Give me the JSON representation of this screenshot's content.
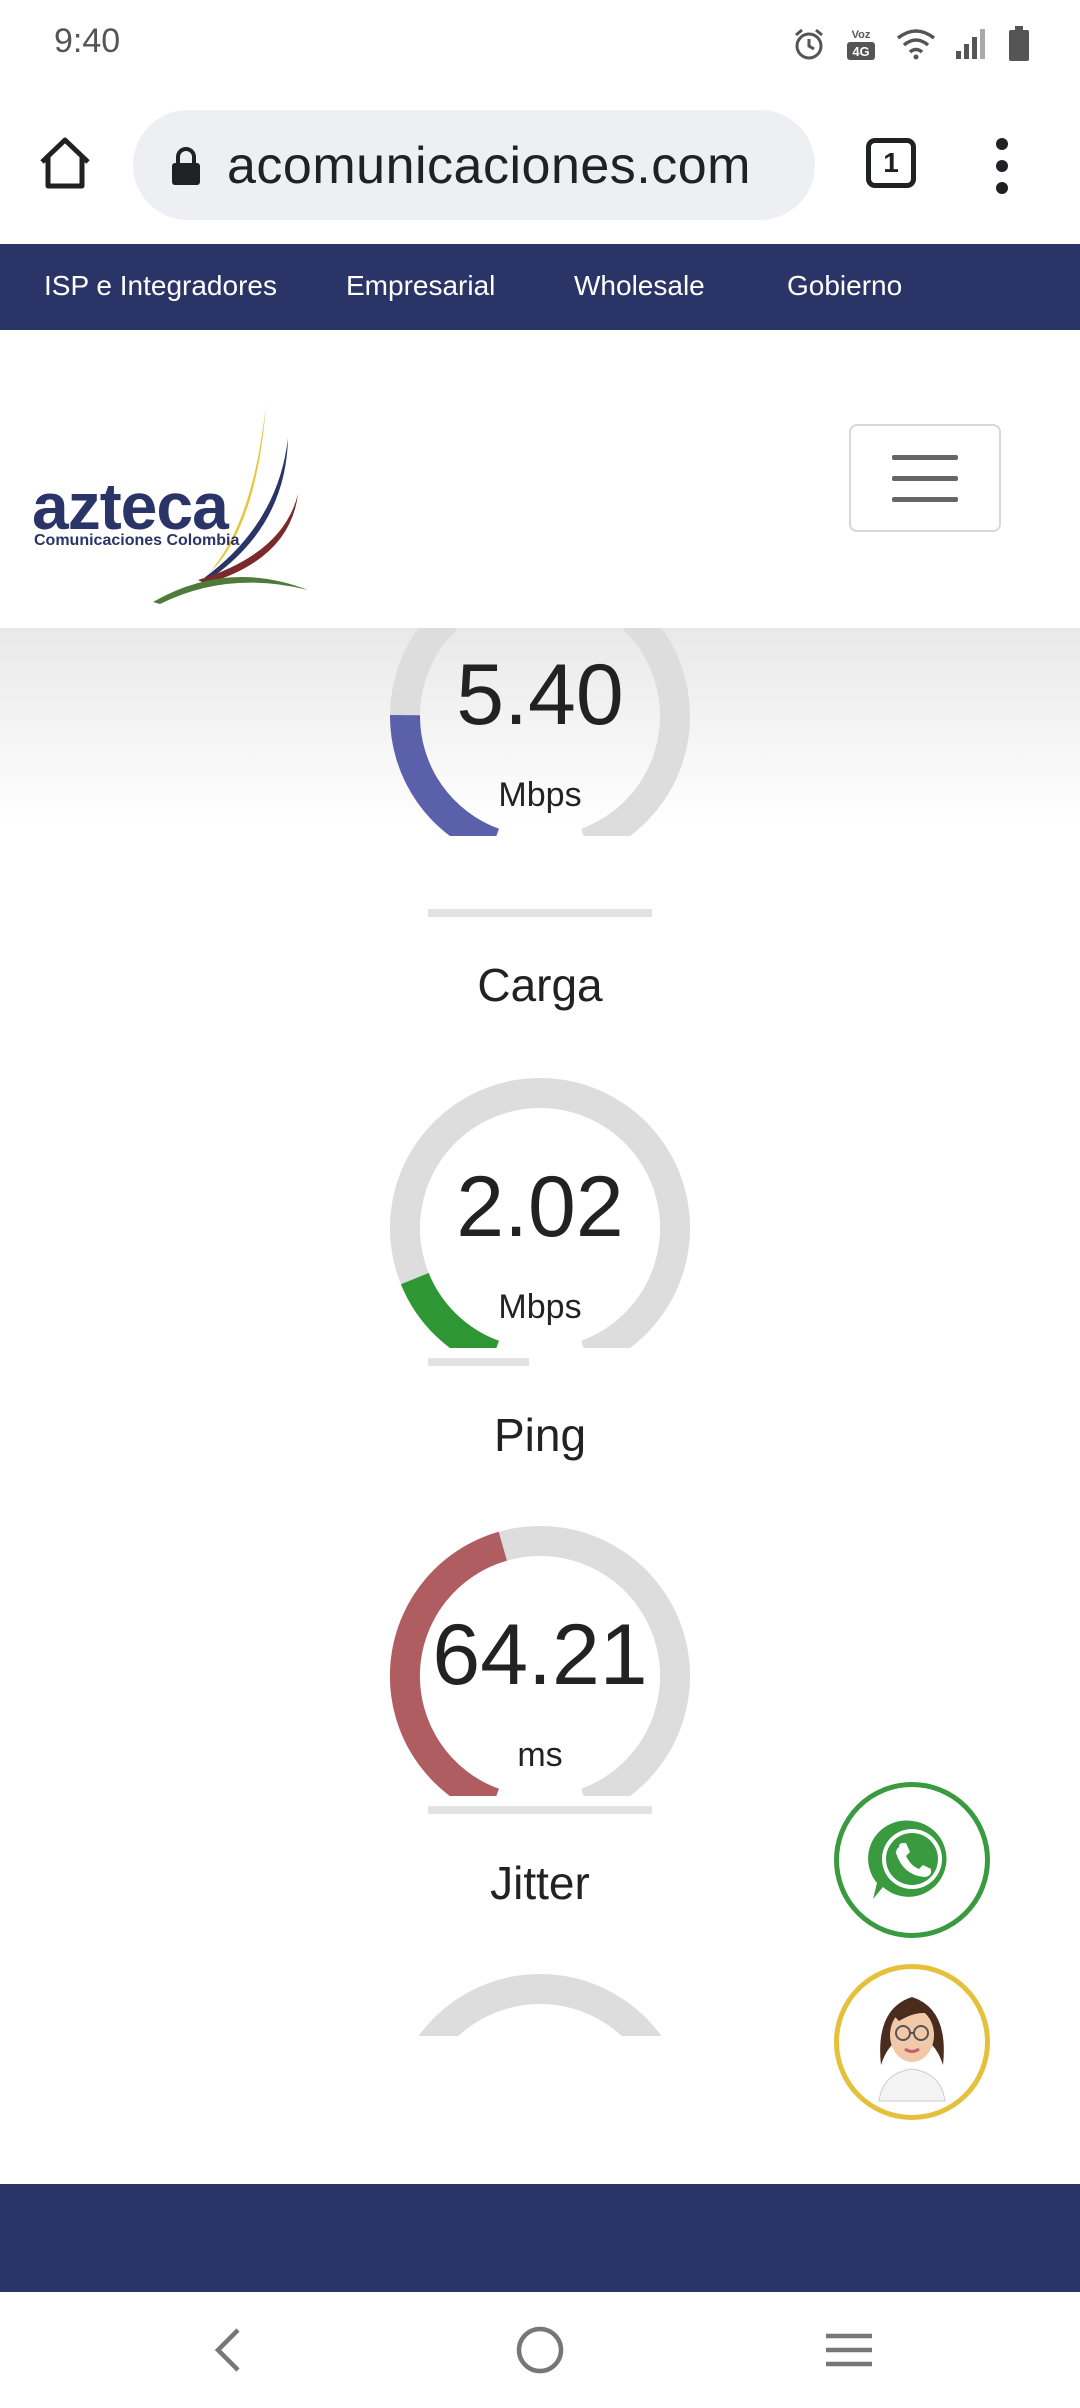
{
  "status_bar": {
    "time": "9:40",
    "network_badge_top": "Voz",
    "network_badge_bottom": "4G",
    "icons": [
      "alarm-icon",
      "volte-icon",
      "wifi-icon",
      "signal-icon",
      "battery-icon"
    ]
  },
  "browser": {
    "url": "acomunicaciones.com",
    "tab_count": "1"
  },
  "topnav": {
    "items": [
      {
        "label": "ISP e Integradores"
      },
      {
        "label": "Empresarial"
      },
      {
        "label": "Wholesale"
      },
      {
        "label": "Gobierno"
      }
    ],
    "background": "#2b3466"
  },
  "header": {
    "logo_name": "azteca",
    "logo_subtitle": "Comunicaciones Colombia"
  },
  "gauges": [
    {
      "title": "",
      "value": "5.40",
      "unit": "Mbps",
      "fill_fraction": 0.22,
      "color": "#5b60ab",
      "bar_fraction": 1.0
    },
    {
      "title": "Carga",
      "value": "2.02",
      "unit": "Mbps",
      "fill_fraction": 0.15,
      "color": "#2e9633",
      "bar_fraction": 0.45
    },
    {
      "title": "Ping",
      "value": "64.21",
      "unit": "ms",
      "fill_fraction": 0.45,
      "color": "#b05d62",
      "bar_fraction": 1.0
    },
    {
      "title": "Jitter",
      "value": "",
      "unit": "",
      "fill_fraction": 0,
      "color": "#dddddd",
      "bar_fraction": 0
    }
  ],
  "floating": {
    "whatsapp_color": "#3a9a3f",
    "agent_color": "#e5c03a"
  }
}
